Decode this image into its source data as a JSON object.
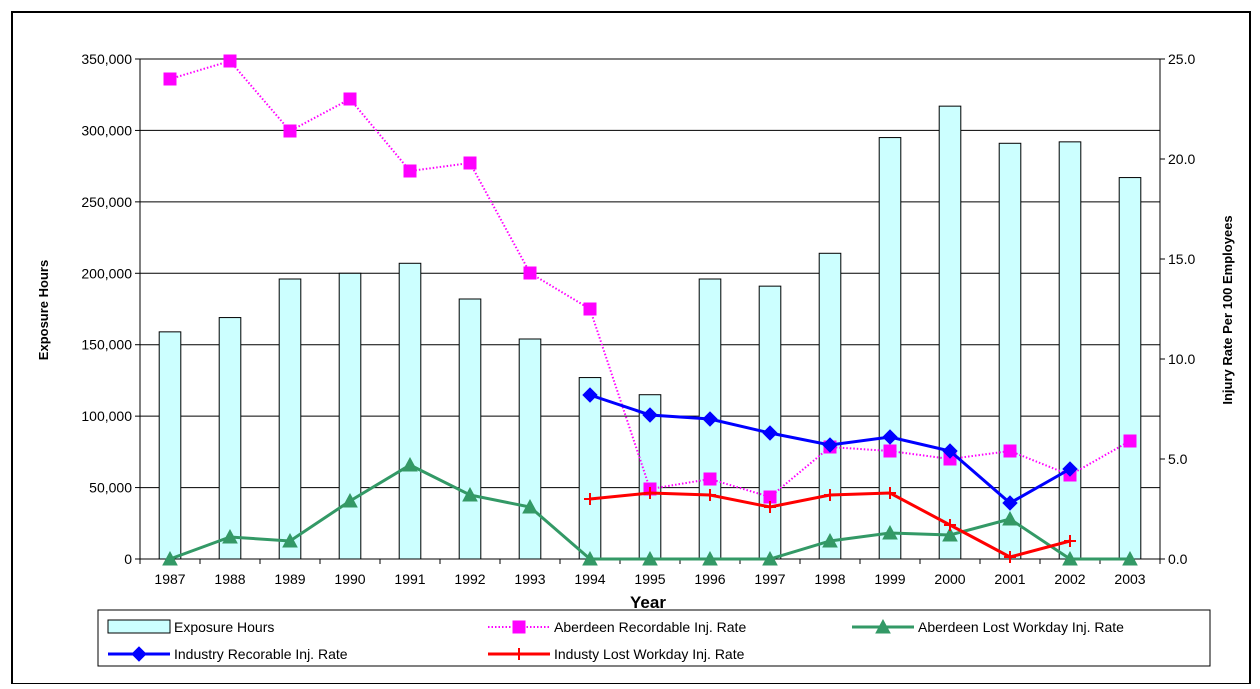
{
  "chart_data": {
    "type": "bar",
    "xlabel": "Year",
    "ylabel_left": "Exposure Hours",
    "ylabel_right": "Injury Rate Per 100 Employees",
    "ylim_left": [
      0,
      350000
    ],
    "ylim_right": [
      0,
      25
    ],
    "yticks_left": [
      "0",
      "50,000",
      "100,000",
      "150,000",
      "200,000",
      "250,000",
      "300,000",
      "350,000"
    ],
    "yticks_right": [
      "0.0",
      "5.0",
      "10.0",
      "15.0",
      "20.0",
      "25.0"
    ],
    "grid": true,
    "legend_position": "bottom",
    "categories": [
      "1987",
      "1988",
      "1989",
      "1990",
      "1991",
      "1992",
      "1993",
      "1994",
      "1995",
      "1996",
      "1997",
      "1998",
      "1999",
      "2000",
      "2001",
      "2002",
      "2003"
    ],
    "bars": {
      "name": "Exposure Hours",
      "axis": "left",
      "color": "#ccffff",
      "stroke": "#000000",
      "values": [
        159000,
        169000,
        196000,
        200000,
        207000,
        182000,
        154000,
        127000,
        115000,
        196000,
        191000,
        214000,
        295000,
        317000,
        291000,
        292000,
        267000
      ]
    },
    "series": [
      {
        "name": "Aberdeen Recordable Inj. Rate",
        "axis": "right",
        "color": "#ff00ff",
        "marker": "square",
        "dotted": true,
        "values": [
          24.0,
          24.9,
          21.4,
          23.0,
          19.4,
          19.8,
          14.3,
          12.5,
          3.5,
          4.0,
          3.1,
          5.6,
          5.4,
          5.0,
          5.4,
          4.2,
          5.9
        ]
      },
      {
        "name": "Aberdeen Lost Workday Inj. Rate",
        "axis": "right",
        "color": "#339966",
        "marker": "triangle",
        "dotted": false,
        "values": [
          0.0,
          1.1,
          0.9,
          2.9,
          4.7,
          3.2,
          2.6,
          0.0,
          0.0,
          0.0,
          0.0,
          0.9,
          1.3,
          1.2,
          2.0,
          0.0,
          0.0
        ]
      },
      {
        "name": "Industry Recorable Inj. Rate",
        "axis": "right",
        "color": "#0000ff",
        "marker": "diamond",
        "dotted": false,
        "values": [
          null,
          null,
          null,
          null,
          null,
          null,
          null,
          8.2,
          7.2,
          7.0,
          6.3,
          5.7,
          6.1,
          5.4,
          2.8,
          4.5,
          null
        ]
      },
      {
        "name": "Industy Lost Workday Inj. Rate",
        "axis": "right",
        "color": "#ff0000",
        "marker": "plus",
        "dotted": false,
        "values": [
          null,
          null,
          null,
          null,
          null,
          null,
          null,
          3.0,
          3.3,
          3.2,
          2.6,
          3.2,
          3.3,
          1.7,
          0.1,
          0.9,
          null
        ]
      }
    ]
  }
}
